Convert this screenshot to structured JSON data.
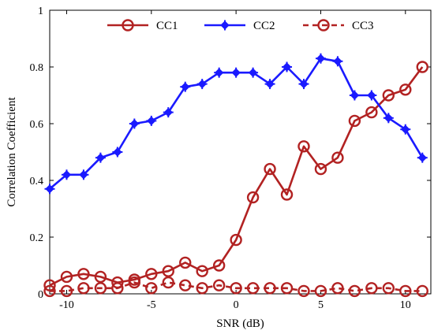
{
  "chart_data": {
    "type": "line",
    "xlabel": "SNR (dB)",
    "ylabel": "Correlation Coefficient",
    "xlim": [
      -11,
      11.5
    ],
    "ylim": [
      0,
      1
    ],
    "xticks": [
      -10,
      -5,
      0,
      5,
      10
    ],
    "yticks": [
      0,
      0.2,
      0.4,
      0.6,
      0.8,
      1
    ],
    "xtick_labels": [
      "-10",
      "-5",
      "0",
      "5",
      "10"
    ],
    "ytick_labels": [
      "0",
      "0.2",
      "0.4",
      "0.6",
      "0.8",
      "1"
    ],
    "legend_position": "top",
    "grid": false,
    "x": [
      -11,
      -10,
      -9,
      -8,
      -7,
      -6,
      -5,
      -4,
      -3,
      -2,
      -1,
      0,
      1,
      2,
      3,
      4,
      5,
      6,
      7,
      8,
      9,
      10,
      11
    ],
    "series": [
      {
        "name": "CC1",
        "color": "#b22222",
        "marker": "circle",
        "line_style": "solid",
        "values": [
          0.03,
          0.06,
          0.07,
          0.06,
          0.04,
          0.05,
          0.07,
          0.08,
          0.11,
          0.08,
          0.1,
          0.19,
          0.34,
          0.44,
          0.35,
          0.52,
          0.44,
          0.48,
          0.61,
          0.64,
          0.7,
          0.72,
          0.8
        ]
      },
      {
        "name": "CC2",
        "color": "#1a1aff",
        "marker": "plus-diamond",
        "line_style": "solid",
        "values": [
          0.37,
          0.42,
          0.42,
          0.48,
          0.5,
          0.6,
          0.61,
          0.64,
          0.73,
          0.74,
          0.78,
          0.78,
          0.78,
          0.74,
          0.8,
          0.74,
          0.83,
          0.82,
          0.7,
          0.7,
          0.62,
          0.58,
          0.48
        ]
      },
      {
        "name": "CC3",
        "color": "#b22222",
        "marker": "circle",
        "line_style": "dashed",
        "values": [
          0.01,
          0.01,
          0.02,
          0.02,
          0.02,
          0.04,
          0.02,
          0.04,
          0.03,
          0.02,
          0.03,
          0.02,
          0.02,
          0.02,
          0.02,
          0.01,
          0.01,
          0.02,
          0.01,
          0.02,
          0.02,
          0.01,
          0.01
        ]
      }
    ]
  }
}
